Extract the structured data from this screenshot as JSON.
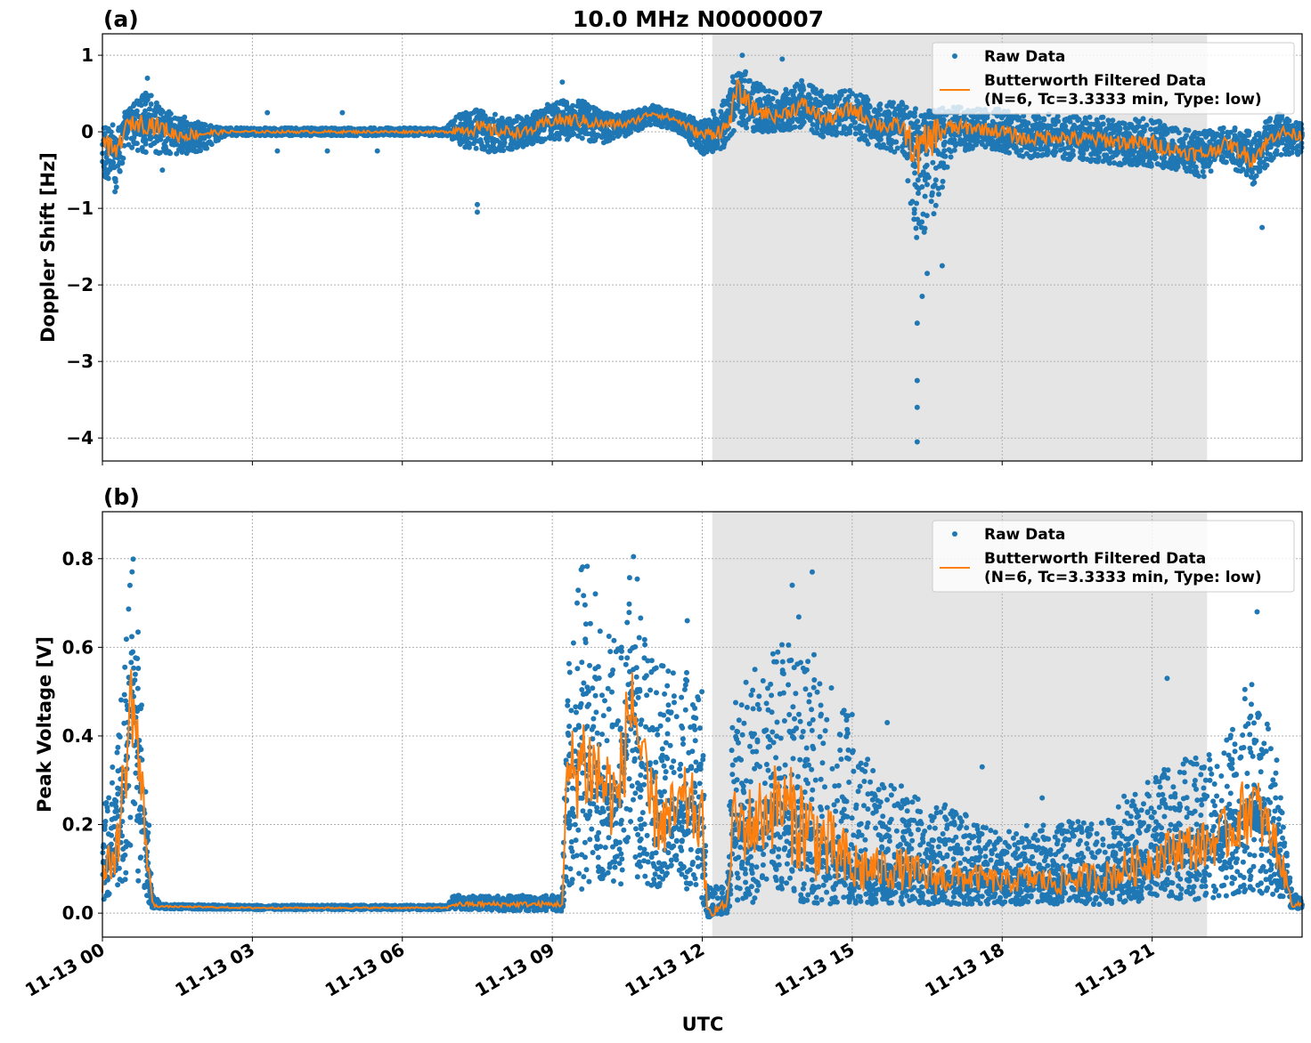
{
  "chart_data": [
    {
      "type": "scatter",
      "panel_label": "(a)",
      "title": "10.0 MHz N0000007",
      "xlabel": "",
      "ylabel": "Doppler Shift [Hz]",
      "xlim_hours": [
        0,
        24
      ],
      "ylim": [
        -4.3,
        1.28
      ],
      "yticks": [
        1,
        0,
        -1,
        -2,
        -3,
        -4
      ],
      "ytick_labels": [
        "1",
        "0",
        "−1",
        "−2",
        "−3",
        "−4"
      ],
      "grid": true,
      "legend_placement": "top-right",
      "shaded_interval_hours": [
        12.2,
        22.1
      ],
      "colors": {
        "raw": "#1f77b4",
        "filtered": "#ff7f0e",
        "shade": "#e5e5e5"
      },
      "legend": {
        "raw": "Raw Data",
        "filtered_line1": "Butterworth Filtered Data",
        "filtered_line2": "(N=6, Tc=3.3333 min, Type: low)"
      },
      "envelope_columns": [
        "hour",
        "filtered",
        "raw_min",
        "raw_max"
      ],
      "envelope": [
        [
          0,
          -0.1,
          -0.6,
          0.05
        ],
        [
          0.25,
          -0.3,
          -0.8,
          0.1
        ],
        [
          0.5,
          0.1,
          -0.2,
          0.3
        ],
        [
          0.9,
          0.12,
          -0.3,
          0.55
        ],
        [
          1.2,
          0.05,
          -0.3,
          0.3
        ],
        [
          1.5,
          -0.05,
          -0.3,
          0.25
        ],
        [
          2.0,
          -0.02,
          -0.25,
          0.1
        ],
        [
          2.5,
          0,
          -0.05,
          0.05
        ],
        [
          3,
          0,
          -0.05,
          0.05
        ],
        [
          4,
          0,
          -0.05,
          0.05
        ],
        [
          5,
          0,
          -0.05,
          0.05
        ],
        [
          6,
          0,
          -0.05,
          0.05
        ],
        [
          6.9,
          0,
          -0.05,
          0.05
        ],
        [
          7.0,
          0.02,
          -0.1,
          0.2
        ],
        [
          7.5,
          0.05,
          -0.3,
          0.3
        ],
        [
          8.0,
          0.0,
          -0.25,
          0.2
        ],
        [
          8.5,
          0.0,
          -0.2,
          0.2
        ],
        [
          9.0,
          0.15,
          -0.1,
          0.4
        ],
        [
          9.5,
          0.15,
          -0.1,
          0.45
        ],
        [
          10.0,
          0.1,
          -0.15,
          0.25
        ],
        [
          10.5,
          0.1,
          -0.05,
          0.25
        ],
        [
          11.0,
          0.25,
          0.1,
          0.35
        ],
        [
          11.5,
          0.15,
          0.0,
          0.25
        ],
        [
          12.0,
          -0.05,
          -0.3,
          0.15
        ],
        [
          12.5,
          0.05,
          -0.2,
          0.5
        ],
        [
          12.7,
          0.55,
          0.1,
          0.9
        ],
        [
          13.0,
          0.3,
          0.0,
          0.7
        ],
        [
          13.5,
          0.2,
          0.0,
          0.5
        ],
        [
          14.0,
          0.35,
          0.05,
          0.7
        ],
        [
          14.5,
          0.15,
          -0.1,
          0.5
        ],
        [
          15.0,
          0.3,
          -0.1,
          0.55
        ],
        [
          15.5,
          0.1,
          -0.2,
          0.4
        ],
        [
          16.0,
          0.05,
          -0.3,
          0.4
        ],
        [
          16.3,
          -0.3,
          -1.5,
          0.3
        ],
        [
          16.7,
          0.0,
          -1.0,
          0.3
        ],
        [
          17.0,
          0.05,
          -0.3,
          0.35
        ],
        [
          17.5,
          0.05,
          -0.2,
          0.3
        ],
        [
          18.0,
          0.0,
          -0.25,
          0.3
        ],
        [
          18.5,
          -0.1,
          -0.35,
          0.2
        ],
        [
          19.0,
          -0.05,
          -0.3,
          0.25
        ],
        [
          19.5,
          -0.1,
          -0.4,
          0.2
        ],
        [
          20.0,
          -0.1,
          -0.4,
          0.2
        ],
        [
          20.5,
          -0.15,
          -0.45,
          0.15
        ],
        [
          21.0,
          -0.15,
          -0.45,
          0.2
        ],
        [
          21.5,
          -0.25,
          -0.5,
          0.05
        ],
        [
          22.0,
          -0.3,
          -0.6,
          0.0
        ],
        [
          22.5,
          -0.15,
          -0.4,
          0.1
        ],
        [
          23.0,
          -0.35,
          -0.7,
          0.0
        ],
        [
          23.5,
          0.0,
          -0.3,
          0.25
        ],
        [
          24.0,
          -0.05,
          -0.3,
          0.1
        ]
      ],
      "outliers": [
        [
          0.9,
          0.7
        ],
        [
          7.5,
          -0.95
        ],
        [
          7.5,
          -1.05
        ],
        [
          9.2,
          0.65
        ],
        [
          12.8,
          1.0
        ],
        [
          13.6,
          0.95
        ],
        [
          16.3,
          -4.05
        ],
        [
          16.3,
          -3.6
        ],
        [
          16.3,
          -3.25
        ],
        [
          16.3,
          -2.5
        ],
        [
          16.4,
          -2.15
        ],
        [
          16.5,
          -1.85
        ],
        [
          16.8,
          -1.75
        ],
        [
          23.2,
          -1.25
        ],
        [
          1.2,
          -0.5
        ],
        [
          3.5,
          -0.25
        ],
        [
          4.5,
          -0.25
        ],
        [
          5.5,
          -0.25
        ],
        [
          3.3,
          0.25
        ],
        [
          4.8,
          0.25
        ]
      ]
    },
    {
      "type": "scatter",
      "panel_label": "(b)",
      "title": "",
      "xlabel": "UTC",
      "ylabel": "Peak Voltage [V]",
      "xlim_hours": [
        0,
        24
      ],
      "ylim": [
        -0.054,
        0.906
      ],
      "yticks": [
        0.0,
        0.2,
        0.4,
        0.6,
        0.8
      ],
      "ytick_labels": [
        "0.0",
        "0.2",
        "0.4",
        "0.6",
        "0.8"
      ],
      "xtick_labels": [
        "11-13 00",
        "11-13 03",
        "11-13 06",
        "11-13 09",
        "11-13 12",
        "11-13 15",
        "11-13 18",
        "11-13 21"
      ],
      "xtick_hours": [
        0,
        3,
        6,
        9,
        12,
        15,
        18,
        21
      ],
      "grid": true,
      "legend_placement": "top-right",
      "shaded_interval_hours": [
        12.2,
        22.1
      ],
      "colors": {
        "raw": "#1f77b4",
        "filtered": "#ff7f0e",
        "shade": "#e5e5e5"
      },
      "legend": {
        "raw": "Raw Data",
        "filtered_line1": "Butterworth Filtered Data",
        "filtered_line2": "(N=6, Tc=3.3333 min, Type: low)"
      },
      "envelope_columns": [
        "hour",
        "filtered",
        "raw_min",
        "raw_max"
      ],
      "envelope": [
        [
          0,
          0.08,
          0.02,
          0.22
        ],
        [
          0.3,
          0.15,
          0.05,
          0.4
        ],
        [
          0.6,
          0.5,
          0.1,
          0.85
        ],
        [
          0.8,
          0.25,
          0.05,
          0.55
        ],
        [
          1.0,
          0.02,
          0.01,
          0.05
        ],
        [
          1.2,
          0.015,
          0.01,
          0.02
        ],
        [
          3,
          0.012,
          0.008,
          0.018
        ],
        [
          5,
          0.012,
          0.008,
          0.018
        ],
        [
          6.9,
          0.012,
          0.008,
          0.018
        ],
        [
          7.0,
          0.02,
          0.01,
          0.04
        ],
        [
          8.0,
          0.02,
          0.005,
          0.04
        ],
        [
          9.2,
          0.02,
          0.005,
          0.04
        ],
        [
          9.3,
          0.3,
          0.05,
          0.6
        ],
        [
          9.6,
          0.35,
          0.05,
          0.82
        ],
        [
          10.0,
          0.3,
          0.05,
          0.7
        ],
        [
          10.3,
          0.25,
          0.05,
          0.6
        ],
        [
          10.6,
          0.5,
          0.08,
          0.86
        ],
        [
          10.9,
          0.25,
          0.05,
          0.6
        ],
        [
          11.3,
          0.2,
          0.05,
          0.55
        ],
        [
          11.7,
          0.25,
          0.05,
          0.55
        ],
        [
          12.0,
          0.2,
          0.03,
          0.5
        ],
        [
          12.1,
          0.0,
          -0.01,
          0.06
        ],
        [
          12.5,
          0.02,
          0.0,
          0.06
        ],
        [
          12.6,
          0.2,
          0.03,
          0.5
        ],
        [
          13.0,
          0.2,
          0.02,
          0.55
        ],
        [
          13.5,
          0.25,
          0.03,
          0.6
        ],
        [
          14.0,
          0.2,
          0.02,
          0.7
        ],
        [
          14.5,
          0.15,
          0.02,
          0.55
        ],
        [
          15.0,
          0.1,
          0.02,
          0.45
        ],
        [
          15.5,
          0.1,
          0.02,
          0.3
        ],
        [
          16.0,
          0.1,
          0.02,
          0.3
        ],
        [
          16.5,
          0.08,
          0.02,
          0.25
        ],
        [
          17.0,
          0.08,
          0.02,
          0.25
        ],
        [
          17.5,
          0.08,
          0.02,
          0.2
        ],
        [
          18.0,
          0.07,
          0.02,
          0.18
        ],
        [
          18.5,
          0.08,
          0.02,
          0.2
        ],
        [
          19.0,
          0.07,
          0.02,
          0.2
        ],
        [
          19.5,
          0.08,
          0.02,
          0.22
        ],
        [
          20.0,
          0.08,
          0.02,
          0.22
        ],
        [
          20.5,
          0.1,
          0.02,
          0.28
        ],
        [
          21.0,
          0.12,
          0.03,
          0.3
        ],
        [
          21.5,
          0.15,
          0.03,
          0.35
        ],
        [
          22.0,
          0.15,
          0.03,
          0.35
        ],
        [
          22.5,
          0.18,
          0.03,
          0.4
        ],
        [
          23.0,
          0.25,
          0.05,
          0.55
        ],
        [
          23.5,
          0.15,
          0.03,
          0.35
        ],
        [
          23.8,
          0.02,
          0.01,
          0.05
        ],
        [
          24.0,
          0.02,
          0.01,
          0.03
        ]
      ],
      "outliers": [
        [
          11.7,
          0.66
        ],
        [
          14.2,
          0.77
        ],
        [
          13.8,
          0.74
        ],
        [
          23.1,
          0.68
        ],
        [
          21.3,
          0.53
        ],
        [
          15.7,
          0.43
        ],
        [
          17.6,
          0.33
        ],
        [
          18.8,
          0.26
        ]
      ]
    }
  ]
}
